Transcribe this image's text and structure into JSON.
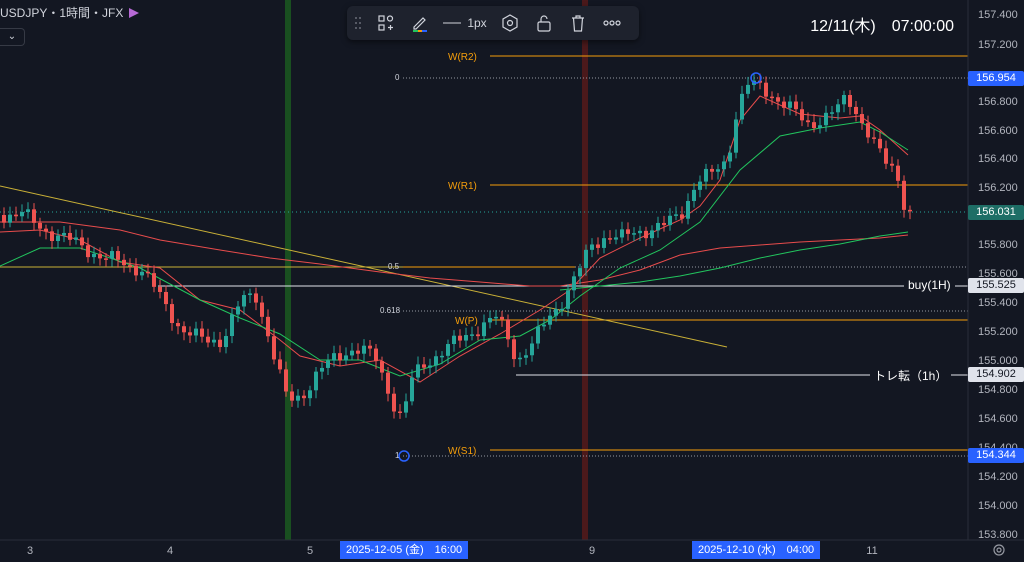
{
  "header": {
    "symbol": "USDJPY・1時間・JFX",
    "datetime": "12/11(木)　07:00:00"
  },
  "toolbar": {
    "line_width_label": "1px",
    "icons": [
      "drag-handle-icon",
      "templates-icon",
      "pencil-color-icon",
      "line-style-icon",
      "settings-hexagon-icon",
      "unlock-icon",
      "trash-icon",
      "more-icon"
    ]
  },
  "price_axis": {
    "ticks": [
      "157.400",
      "157.200",
      "156.800",
      "156.600",
      "156.400",
      "156.200",
      "155.800",
      "155.600",
      "155.400",
      "155.200",
      "155.000",
      "154.800",
      "154.600",
      "154.400",
      "154.200",
      "154.000",
      "153.800"
    ],
    "high_tag": "156.954",
    "current_tag": "156.031",
    "buy_tag": "155.525",
    "turn_tag": "154.902",
    "low_tag": "154.344"
  },
  "time_axis": {
    "ticks": [
      "3",
      "4",
      "5",
      "9",
      "11"
    ],
    "date_tag_1": "2025-12-05 (金)　16:00",
    "date_tag_2": "2025-12-10 (水)　04:00"
  },
  "levels": {
    "r2": "W(R2)",
    "r1": "W(R1)",
    "p": "W(P)",
    "s1": "W(S1)",
    "fib_0": "0",
    "fib_05": "0.5",
    "fib_0618": "0.618",
    "fib_1": "1"
  },
  "annotations": {
    "buy_label": "buy(1H)",
    "turn_label": "トレ転（1h）"
  },
  "colors": {
    "background": "#131722",
    "up_candle": "#26a69a",
    "down_candle": "#ef5350",
    "ma_green": "#22c55e",
    "ma_red": "#e84c4c",
    "pivot_orange": "#f59e0b",
    "trend_yellow": "#c9b037",
    "price_tag_blue": "#2962ff",
    "current_tag_teal": "#1e6e66"
  }
}
